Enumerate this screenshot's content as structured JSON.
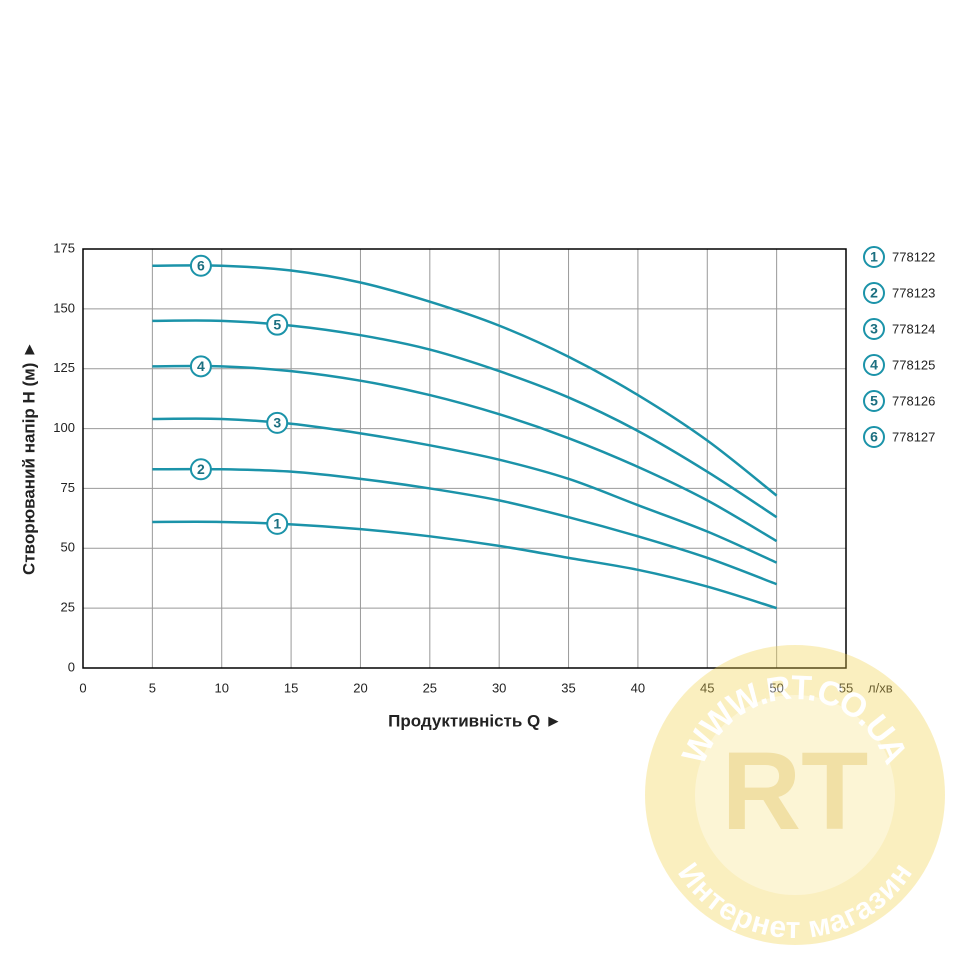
{
  "chart_data": {
    "type": "line",
    "y_label": "Створюваний напір Н (м) ►",
    "x_label": "Продуктивність  Q ►",
    "x_unit": "л/хв",
    "x": [
      5,
      10,
      15,
      20,
      25,
      30,
      35,
      40,
      45,
      50
    ],
    "xlim": [
      0,
      55
    ],
    "xticks": [
      0,
      5,
      10,
      15,
      20,
      25,
      30,
      35,
      40,
      45,
      50,
      55
    ],
    "ylim": [
      0,
      175
    ],
    "yticks": [
      0,
      25,
      50,
      75,
      100,
      125,
      150,
      175
    ],
    "grid": true,
    "series": [
      {
        "label": "1",
        "name": "778122",
        "color": "#1b93a9",
        "values": [
          61,
          61,
          60,
          58,
          55,
          51,
          46,
          41,
          34,
          25
        ]
      },
      {
        "label": "2",
        "name": "778123",
        "color": "#1b93a9",
        "values": [
          83,
          83,
          82,
          79,
          75,
          70,
          63,
          55,
          46,
          35
        ]
      },
      {
        "label": "3",
        "name": "778124",
        "color": "#1b93a9",
        "values": [
          104,
          104,
          102,
          98,
          93,
          87,
          79,
          68,
          57,
          44
        ]
      },
      {
        "label": "4",
        "name": "778125",
        "color": "#1b93a9",
        "values": [
          126,
          126,
          124,
          120,
          114,
          106,
          96,
          84,
          70,
          53
        ]
      },
      {
        "label": "5",
        "name": "778126",
        "color": "#1b93a9",
        "values": [
          145,
          145,
          143,
          139,
          133,
          124,
          113,
          99,
          82,
          63
        ]
      },
      {
        "label": "6",
        "name": "778127",
        "color": "#1b93a9",
        "values": [
          168,
          168,
          166,
          161,
          153,
          143,
          130,
          114,
          95,
          72
        ]
      }
    ],
    "watermark": {
      "url": "WWW.RT.CO.UA",
      "logo": "RT",
      "caption": "Интернет магазин"
    }
  }
}
